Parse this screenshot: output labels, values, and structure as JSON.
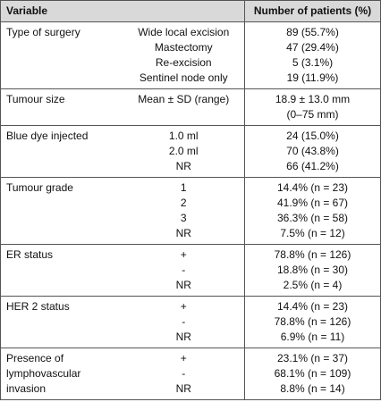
{
  "table": {
    "header": [
      "Variable",
      "Number of patients (%)"
    ],
    "groups": [
      {
        "variable": "Type of surgery",
        "rows": [
          [
            "Wide local excision",
            "89 (55.7%)"
          ],
          [
            "Mastectomy",
            "47 (29.4%)"
          ],
          [
            "Re-excision",
            "5 (3.1%)"
          ],
          [
            "Sentinel node only",
            "19 (11.9%)"
          ]
        ]
      },
      {
        "variable": "Tumour size",
        "rows": [
          [
            "Mean ± SD (range)",
            "18.9 ± 13.0 mm"
          ],
          [
            null,
            "(0–75 mm)"
          ]
        ]
      },
      {
        "variable": "Blue dye injected",
        "rows": [
          [
            "1.0 ml",
            "24 (15.0%)"
          ],
          [
            "2.0 ml",
            "70 (43.8%)"
          ],
          [
            "NR",
            "66 (41.2%)"
          ]
        ]
      },
      {
        "variable": "Tumour grade",
        "rows": [
          [
            "1",
            "14.4% (n = 23)"
          ],
          [
            "2",
            "41.9% (n = 67)"
          ],
          [
            "3",
            "36.3% (n = 58)"
          ],
          [
            "NR",
            "7.5% (n = 12)"
          ]
        ]
      },
      {
        "variable": "ER status",
        "rows": [
          [
            "+",
            "78.8% (n = 126)"
          ],
          [
            "-",
            "18.8% (n = 30)"
          ],
          [
            "NR",
            "2.5% (n = 4)"
          ]
        ]
      },
      {
        "variable": "HER 2 status",
        "rows": [
          [
            "+",
            "14.4% (n = 23)"
          ],
          [
            "-",
            "78.8% (n = 126)"
          ],
          [
            "NR",
            "6.9% (n = 11)"
          ]
        ]
      },
      {
        "variable": "Presence of lymphovascular invasion",
        "rows": [
          [
            "+",
            "23.1% (n = 37)"
          ],
          [
            "-",
            "68.1% (n = 109)"
          ],
          [
            "NR",
            "8.8% (n = 14)"
          ]
        ]
      }
    ]
  }
}
